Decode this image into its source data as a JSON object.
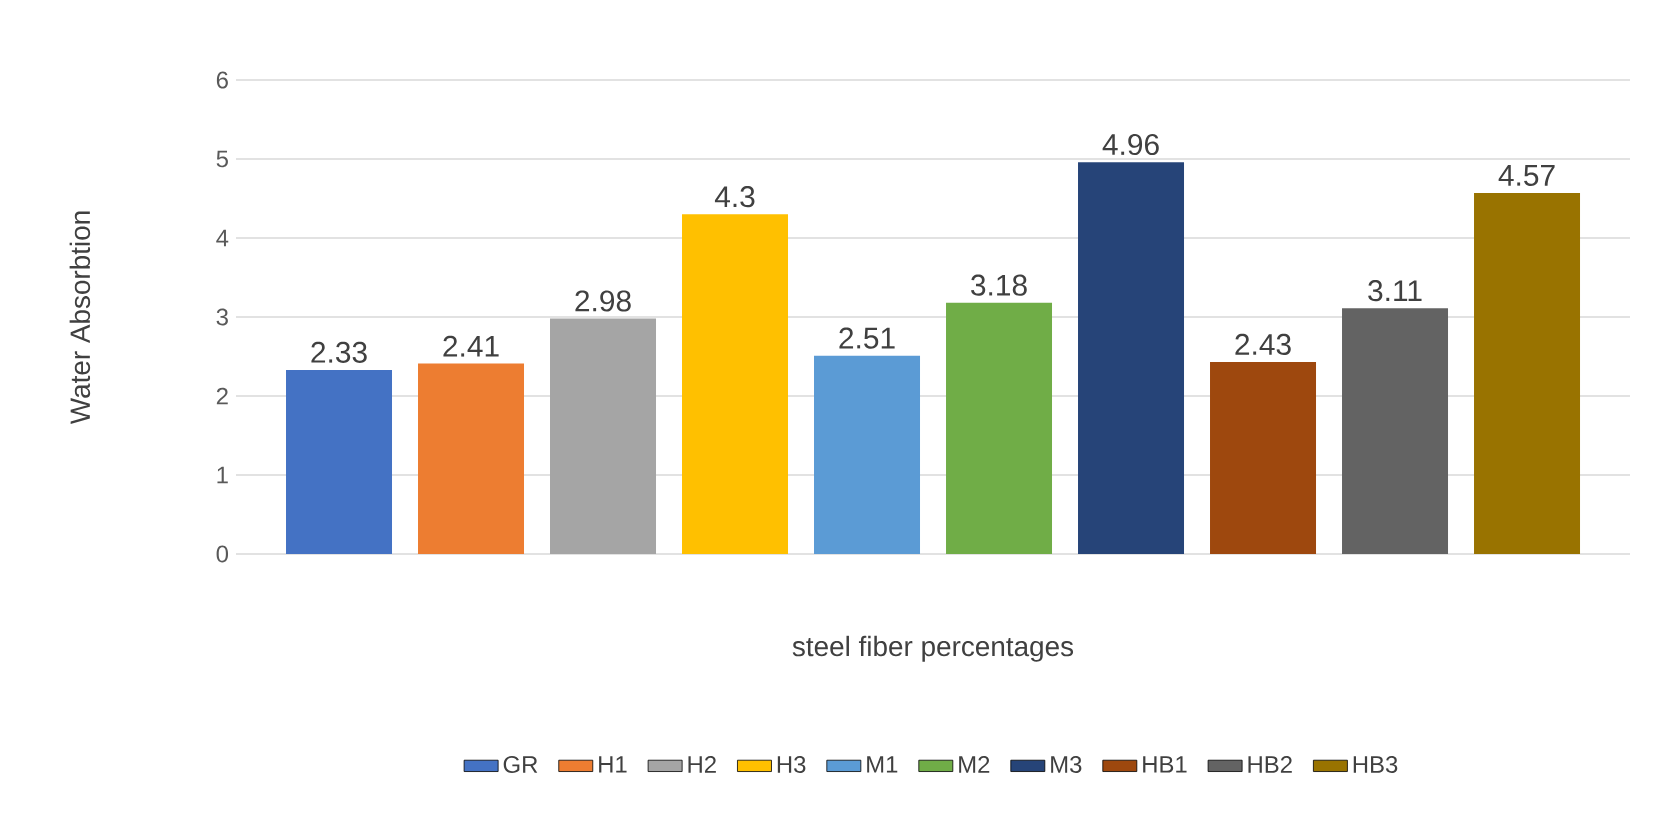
{
  "chart_data": {
    "type": "bar",
    "xlabel": "steel fiber percentages",
    "ylabel": "Water Absorbtion",
    "categories": [
      null
    ],
    "series": [
      {
        "name": "GR",
        "color": "#4472c4",
        "values": [
          2.33
        ]
      },
      {
        "name": "H1",
        "color": "#ed7d31",
        "values": [
          2.41
        ]
      },
      {
        "name": "H2",
        "color": "#a5a5a5",
        "values": [
          2.98
        ]
      },
      {
        "name": "H3",
        "color": "#ffc000",
        "values": [
          4.3
        ]
      },
      {
        "name": "M1",
        "color": "#5b9bd5",
        "values": [
          2.51
        ]
      },
      {
        "name": "M2",
        "color": "#70ad47",
        "values": [
          3.18
        ]
      },
      {
        "name": "M3",
        "color": "#264478",
        "values": [
          4.96
        ]
      },
      {
        "name": "HB1",
        "color": "#9e480e",
        "values": [
          2.43
        ]
      },
      {
        "name": "HB2",
        "color": "#636363",
        "values": [
          3.11
        ]
      },
      {
        "name": "HB3",
        "color": "#997300",
        "values": [
          4.57
        ]
      }
    ],
    "ylim": [
      0,
      6
    ],
    "yticks": [
      0,
      1,
      2,
      3,
      4,
      5,
      6
    ],
    "grid": "y",
    "legend": "bottom",
    "data_labels": true
  }
}
